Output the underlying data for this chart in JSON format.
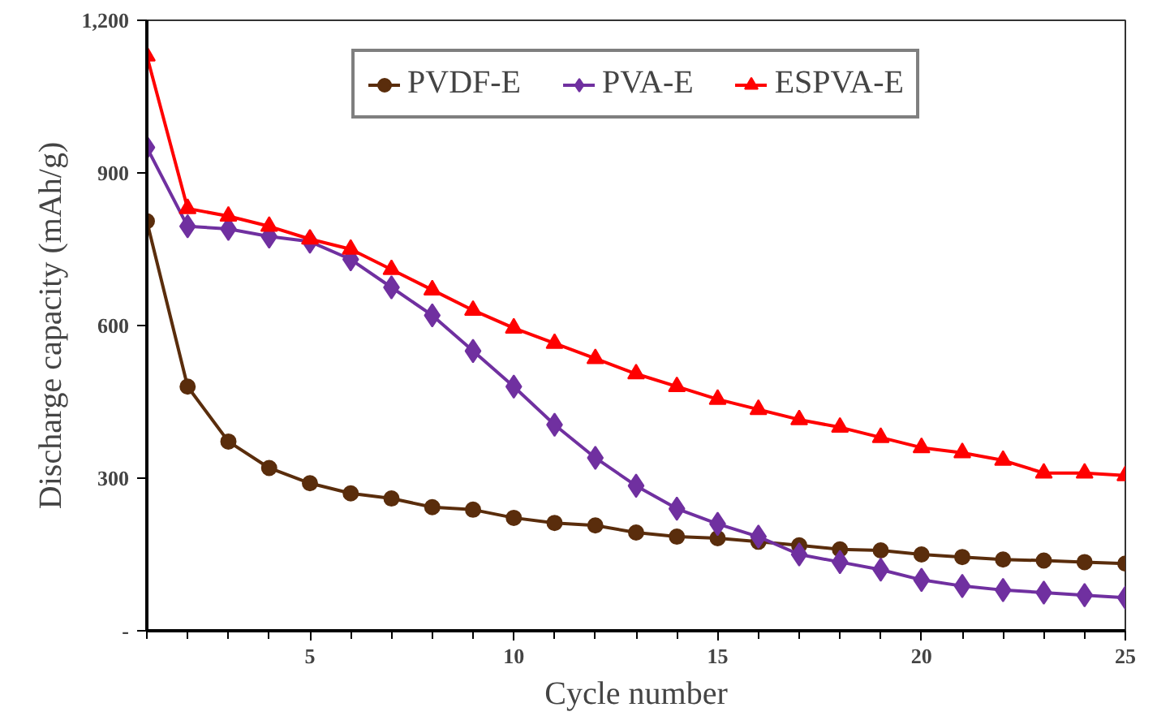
{
  "chart_data": {
    "type": "line",
    "xlabel": "Cycle number",
    "ylabel": "Discharge capacity (mAh/g)",
    "x": [
      1,
      2,
      3,
      4,
      5,
      6,
      7,
      8,
      9,
      10,
      11,
      12,
      13,
      14,
      15,
      16,
      17,
      18,
      19,
      20,
      21,
      22,
      23,
      24,
      25
    ],
    "xlim": [
      1,
      25
    ],
    "xticks": [
      5,
      10,
      15,
      20,
      25
    ],
    "ylim": [
      0,
      1200
    ],
    "yticks": [
      {
        "value": 0,
        "label": "-"
      },
      300,
      600,
      900,
      {
        "value": 1200,
        "label": "1,200"
      }
    ],
    "grid": false,
    "legend": "top",
    "line_style": "solid",
    "series": [
      {
        "name": "PVDF-E",
        "color": "#5a2d0c",
        "marker": "circle",
        "values": [
          805,
          480,
          372,
          320,
          290,
          270,
          260,
          243,
          238,
          222,
          212,
          207,
          193,
          185,
          182,
          175,
          168,
          160,
          158,
          150,
          145,
          140,
          138,
          135,
          132
        ]
      },
      {
        "name": "PVA-E",
        "color": "#7030a0",
        "marker": "diamond",
        "values": [
          950,
          795,
          790,
          775,
          765,
          730,
          675,
          620,
          550,
          480,
          405,
          340,
          285,
          240,
          210,
          185,
          150,
          135,
          120,
          100,
          88,
          80,
          75,
          70,
          65
        ]
      },
      {
        "name": "ESPVA-E",
        "color": "#ff0000",
        "marker": "triangle",
        "values": [
          1130,
          830,
          815,
          795,
          770,
          750,
          710,
          670,
          630,
          595,
          565,
          535,
          505,
          480,
          455,
          435,
          415,
          400,
          380,
          360,
          350,
          335,
          310,
          310,
          305
        ]
      }
    ]
  }
}
